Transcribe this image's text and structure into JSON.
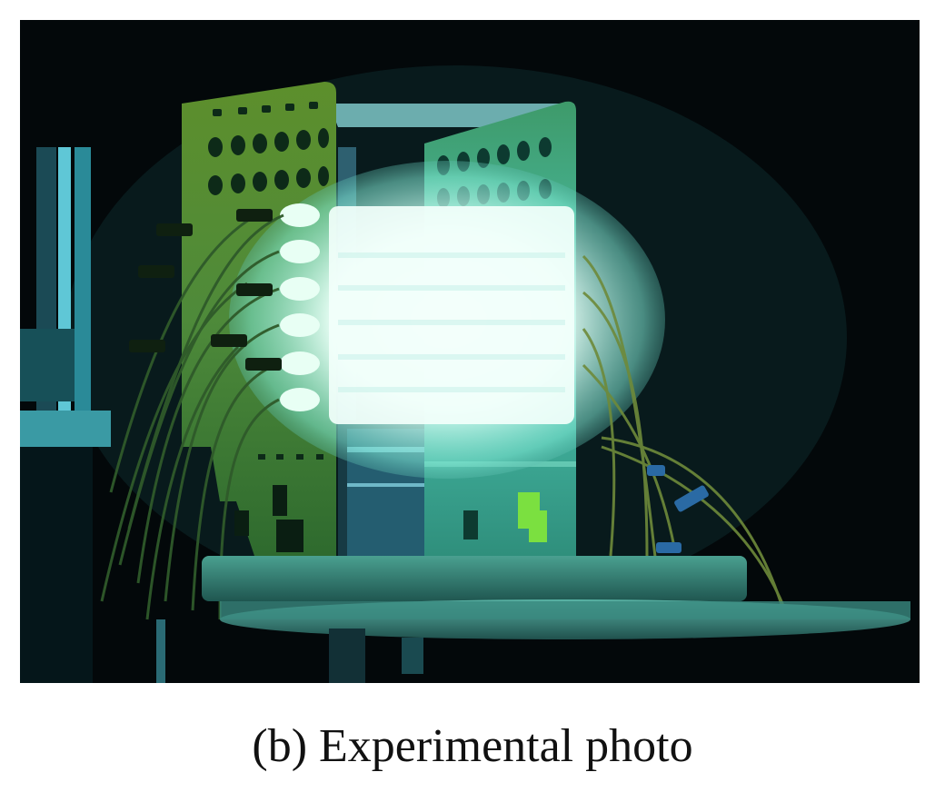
{
  "figure": {
    "caption": "(b) Experimental photo",
    "photo_description_icon": "glowing-plasma-reactor-photo"
  },
  "colors": {
    "background": "#ffffff",
    "photo_background": "#03080a",
    "glow": "#e8fff8",
    "panel_green": "#5a8a2a",
    "panel_cyan": "#3fb7a6"
  }
}
